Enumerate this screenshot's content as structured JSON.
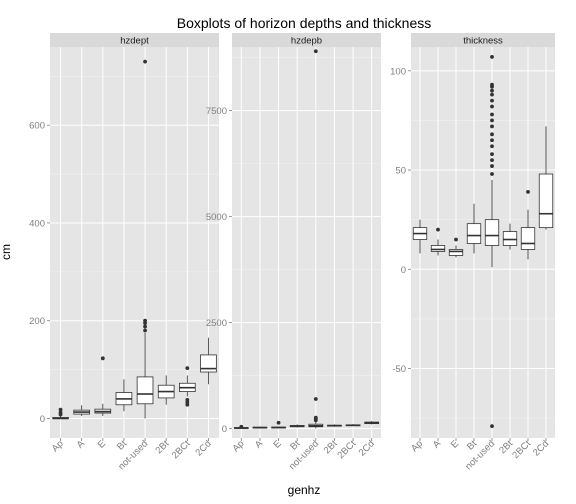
{
  "chart_data": {
    "type": "boxplot",
    "title": "Boxplots of horizon depths and thickness",
    "xlabel": "genhz",
    "ylabel": "cm",
    "categories": [
      "Ap",
      "A",
      "E",
      "Bt",
      "not-used",
      "2Bt",
      "2BCt",
      "2Cd"
    ],
    "facets": [
      {
        "name": "hzdept",
        "ylim": [
          -40,
          760
        ],
        "yticks": [
          0,
          200,
          400,
          600
        ],
        "boxes": [
          {
            "category": "Ap",
            "whisker_low": 0,
            "q1": 0,
            "median": 0,
            "q3": 2,
            "whisker_high": 5,
            "outliers": [
              8,
              12,
              18
            ]
          },
          {
            "category": "A",
            "whisker_low": 5,
            "q1": 9,
            "median": 13,
            "q3": 17,
            "whisker_high": 27,
            "outliers": []
          },
          {
            "category": "E",
            "whisker_low": 5,
            "q1": 11,
            "median": 14,
            "q3": 19,
            "whisker_high": 30,
            "outliers": [
              123
            ]
          },
          {
            "category": "Bt",
            "whisker_low": 15,
            "q1": 28,
            "median": 40,
            "q3": 53,
            "whisker_high": 80,
            "outliers": []
          },
          {
            "category": "not-used",
            "whisker_low": 0,
            "q1": 30,
            "median": 50,
            "q3": 85,
            "whisker_high": 175,
            "outliers": [
              180,
              188,
              195,
              200,
              730
            ]
          },
          {
            "category": "2Bt",
            "whisker_low": 28,
            "q1": 42,
            "median": 55,
            "q3": 68,
            "whisker_high": 88,
            "outliers": []
          },
          {
            "category": "2BCt",
            "whisker_low": 45,
            "q1": 55,
            "median": 63,
            "q3": 72,
            "whisker_high": 88,
            "outliers": [
              28,
              33,
              38,
              103
            ]
          },
          {
            "category": "2Cd",
            "whisker_low": 70,
            "q1": 95,
            "median": 102,
            "q3": 130,
            "whisker_high": 165,
            "outliers": []
          }
        ]
      },
      {
        "name": "hzdepb",
        "ylim": [
          -220,
          9000
        ],
        "yticks": [
          0,
          2500,
          5000,
          7500
        ],
        "boxes": [
          {
            "category": "Ap",
            "whisker_low": 10,
            "q1": 15,
            "median": 18,
            "q3": 22,
            "whisker_high": 28,
            "outliers": [
              45
            ]
          },
          {
            "category": "A",
            "whisker_low": 15,
            "q1": 22,
            "median": 27,
            "q3": 32,
            "whisker_high": 45,
            "outliers": []
          },
          {
            "category": "E",
            "whisker_low": 15,
            "q1": 22,
            "median": 28,
            "q3": 35,
            "whisker_high": 50,
            "outliers": [
              140
            ]
          },
          {
            "category": "Bt",
            "whisker_low": 30,
            "q1": 45,
            "median": 58,
            "q3": 75,
            "whisker_high": 100,
            "outliers": []
          },
          {
            "category": "not-used",
            "whisker_low": 5,
            "q1": 45,
            "median": 68,
            "q3": 105,
            "whisker_high": 180,
            "outliers": [
              200,
              230,
              260,
              700,
              8900
            ]
          },
          {
            "category": "2Bt",
            "whisker_low": 45,
            "q1": 60,
            "median": 70,
            "q3": 82,
            "whisker_high": 100,
            "outliers": []
          },
          {
            "category": "2BCt",
            "whisker_low": 60,
            "q1": 70,
            "median": 80,
            "q3": 90,
            "whisker_high": 108,
            "outliers": []
          },
          {
            "category": "2Cd",
            "whisker_low": 100,
            "q1": 120,
            "median": 135,
            "q3": 155,
            "whisker_high": 180,
            "outliers": []
          }
        ]
      },
      {
        "name": "thickness",
        "ylim": [
          -85,
          112
        ],
        "yticks": [
          -50,
          0,
          50,
          100
        ],
        "boxes": [
          {
            "category": "Ap",
            "whisker_low": 8,
            "q1": 15,
            "median": 18,
            "q3": 21,
            "whisker_high": 25,
            "outliers": []
          },
          {
            "category": "A",
            "whisker_low": 7,
            "q1": 9,
            "median": 10,
            "q3": 12,
            "whisker_high": 15,
            "outliers": [
              20
            ]
          },
          {
            "category": "E",
            "whisker_low": 6,
            "q1": 7,
            "median": 9,
            "q3": 10,
            "whisker_high": 12,
            "outliers": [
              15
            ]
          },
          {
            "category": "Bt",
            "whisker_low": 8,
            "q1": 13,
            "median": 17,
            "q3": 23,
            "whisker_high": 33,
            "outliers": []
          },
          {
            "category": "not-used",
            "whisker_low": 1,
            "q1": 12,
            "median": 17,
            "q3": 25,
            "whisker_high": 45,
            "outliers": [
              -79,
              48,
              52,
              55,
              58,
              62,
              65,
              68,
              72,
              75,
              78,
              82,
              85,
              88,
              90,
              92,
              93,
              107
            ]
          },
          {
            "category": "2Bt",
            "whisker_low": 10,
            "q1": 12,
            "median": 15,
            "q3": 19,
            "whisker_high": 23,
            "outliers": []
          },
          {
            "category": "2BCt",
            "whisker_low": 5,
            "q1": 10,
            "median": 13,
            "q3": 21,
            "whisker_high": 30,
            "outliers": [
              39
            ]
          },
          {
            "category": "2Cd",
            "whisker_low": 20,
            "q1": 21,
            "median": 28,
            "q3": 48,
            "whisker_high": 72,
            "outliers": []
          }
        ]
      }
    ]
  }
}
